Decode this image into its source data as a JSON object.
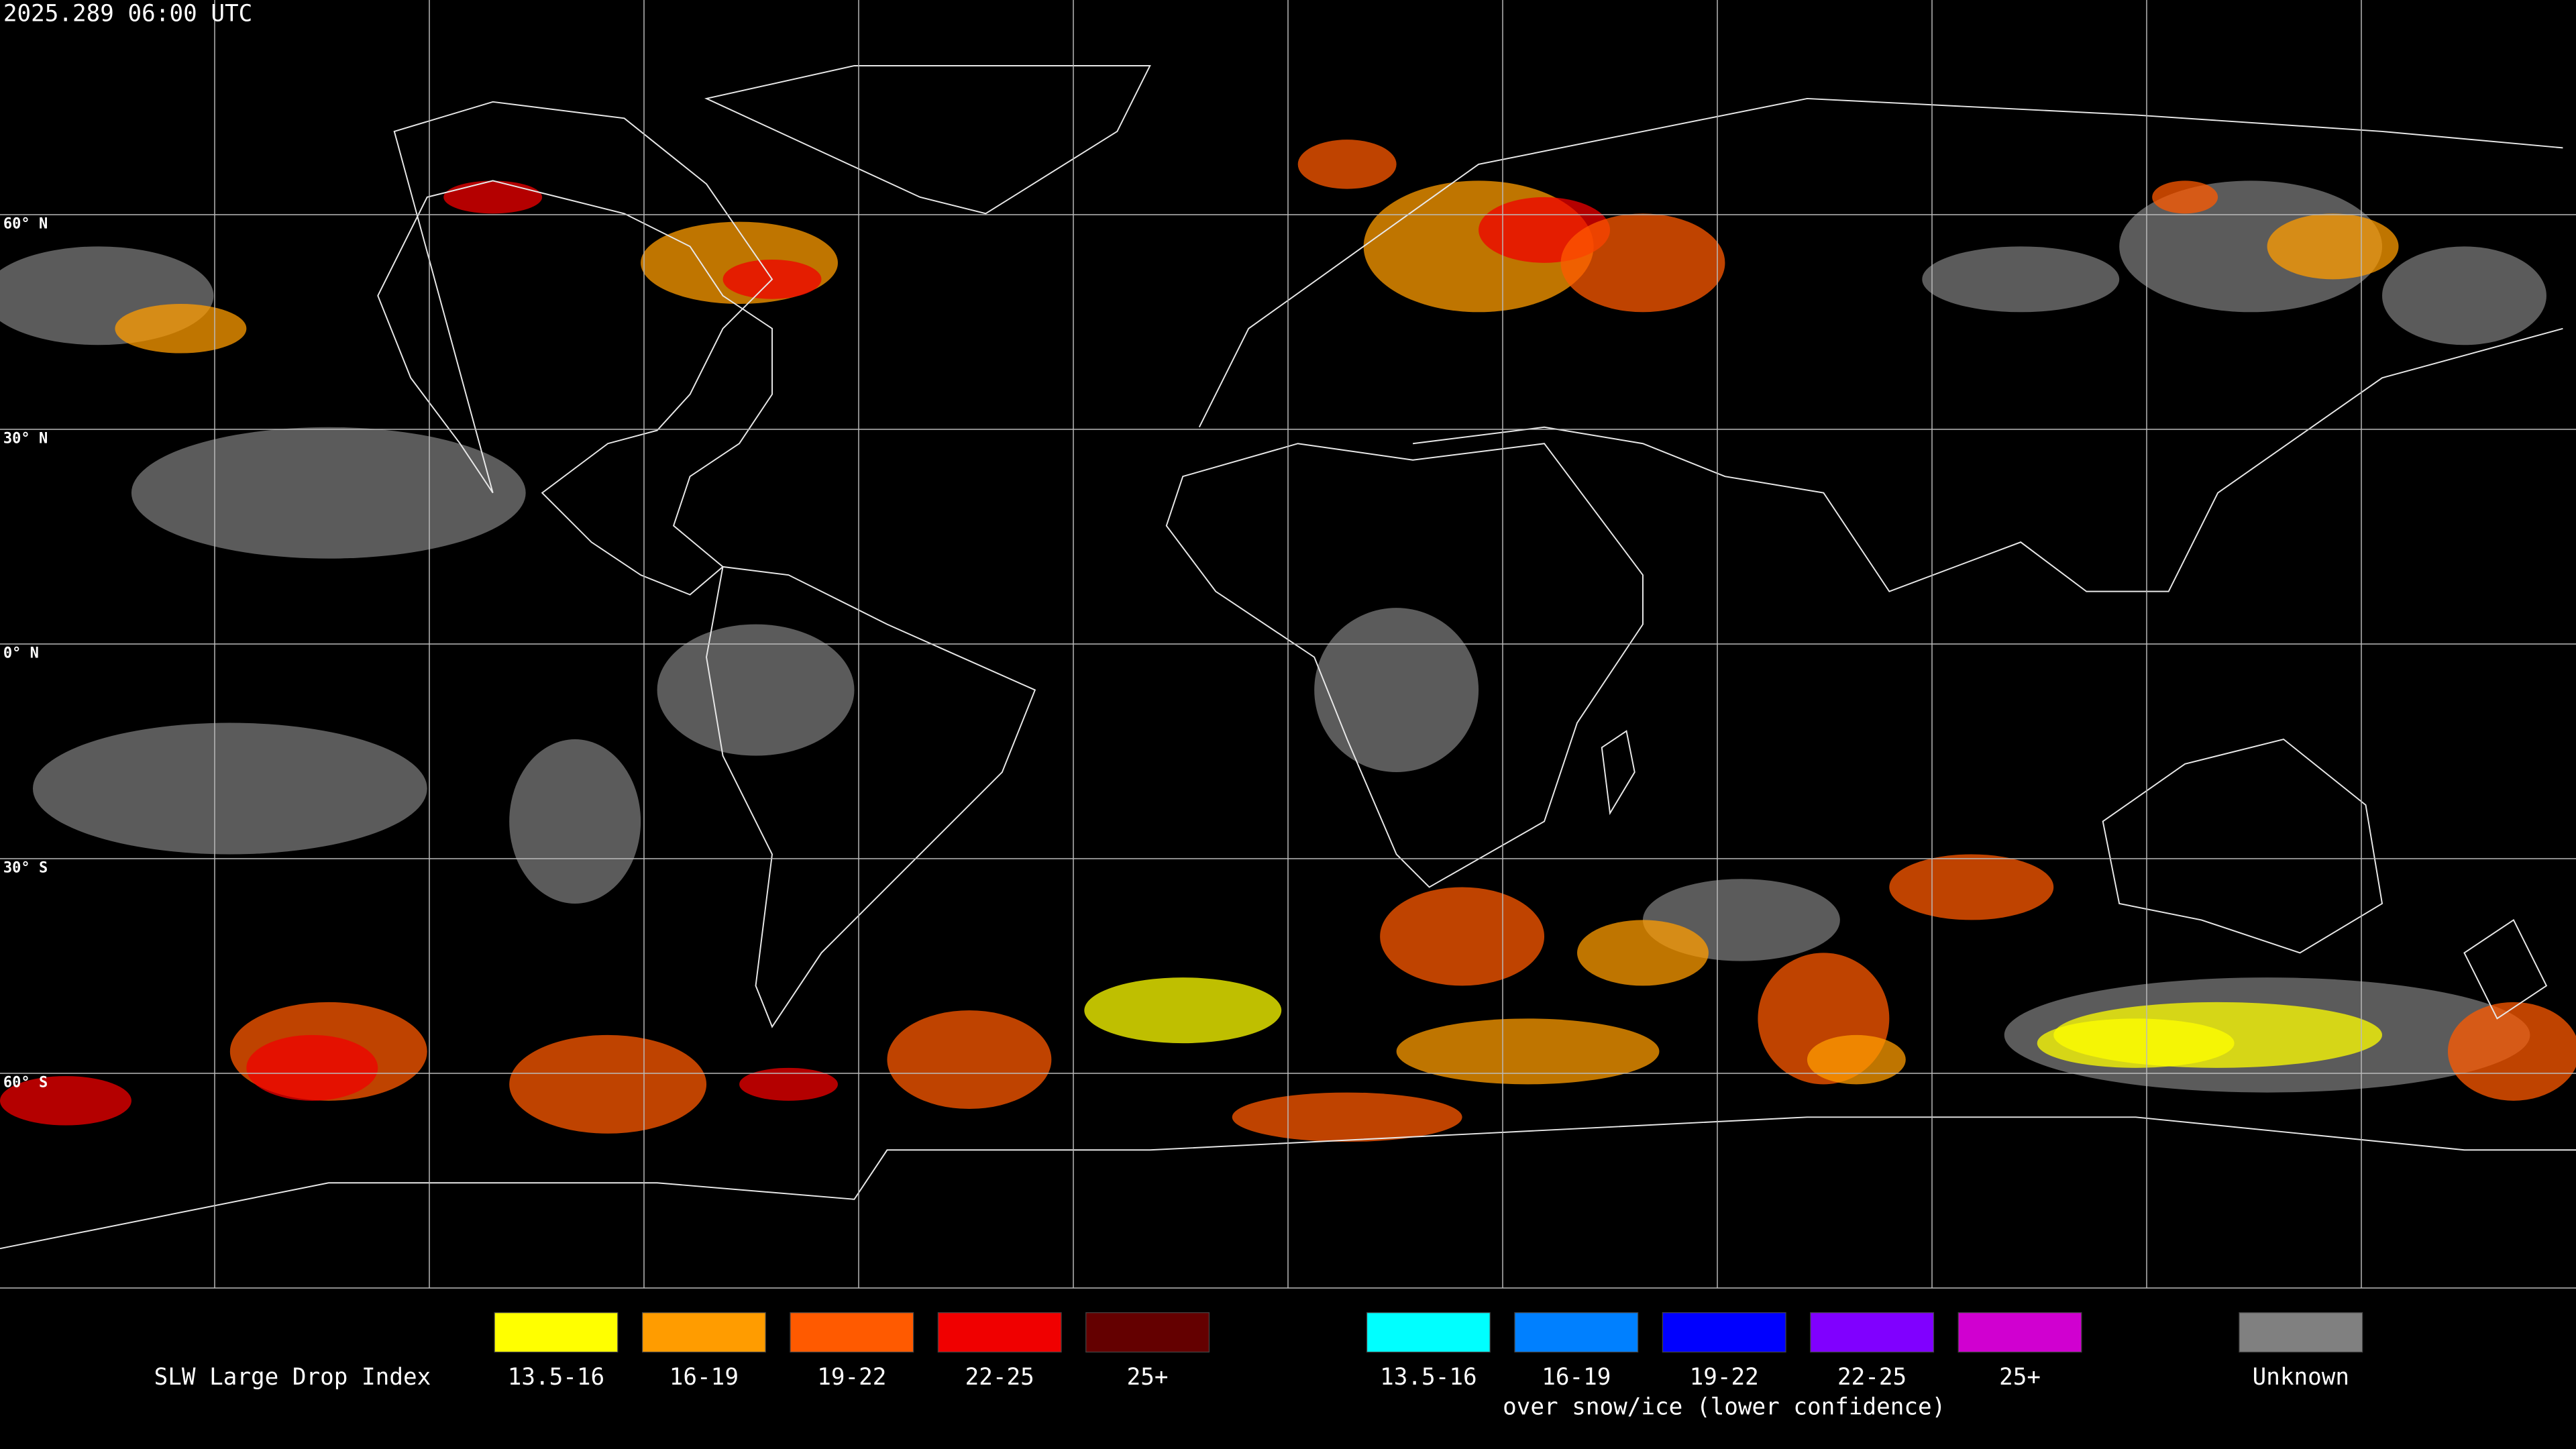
{
  "header": {
    "timestamp": "2025.289 06:00 UTC"
  },
  "map": {
    "lat_labels": [
      "60° N",
      "30° N",
      "0° N",
      "30° S",
      "60° S"
    ]
  },
  "legend": {
    "title": "SLW Large Drop Index",
    "groups": [
      {
        "items": [
          {
            "label": "13.5-16",
            "color": "#ffff00"
          },
          {
            "label": "16-19",
            "color": "#ff9c00"
          },
          {
            "label": "19-22",
            "color": "#ff5a00"
          },
          {
            "label": "22-25",
            "color": "#f00000"
          },
          {
            "label": "25+",
            "color": "#640000"
          }
        ]
      },
      {
        "items": [
          {
            "label": "13.5-16",
            "color": "#00ffff"
          },
          {
            "label": "16-19",
            "color": "#0080ff"
          },
          {
            "label": "19-22",
            "color": "#0000ff"
          },
          {
            "label": "22-25",
            "color": "#8000ff"
          },
          {
            "label": "25+",
            "color": "#d000d0"
          }
        ],
        "caption": "over snow/ice (lower confidence)"
      },
      {
        "items": [
          {
            "label": "Unknown",
            "color": "#808080"
          }
        ]
      }
    ]
  }
}
